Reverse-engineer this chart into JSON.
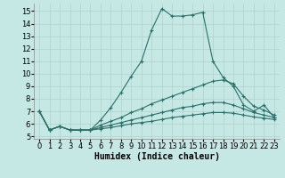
{
  "xlabel": "Humidex (Indice chaleur)",
  "bg_color": "#c5e8e5",
  "line_color": "#2a7068",
  "grid_color": "#b0d0cc",
  "xlim": [
    -0.5,
    23.5
  ],
  "ylim": [
    4.8,
    15.6
  ],
  "xticks": [
    0,
    1,
    2,
    3,
    4,
    5,
    6,
    7,
    8,
    9,
    10,
    11,
    12,
    13,
    14,
    15,
    16,
    17,
    18,
    19,
    20,
    21,
    22,
    23
  ],
  "yticks": [
    5,
    6,
    7,
    8,
    9,
    10,
    11,
    12,
    13,
    14,
    15
  ],
  "line1_x": [
    0,
    1,
    2,
    3,
    4,
    5,
    6,
    7,
    8,
    9,
    10,
    11,
    12,
    13,
    14,
    15,
    16,
    17,
    18,
    19,
    20,
    21,
    22,
    23
  ],
  "line1_y": [
    7.0,
    5.5,
    5.8,
    5.5,
    5.5,
    5.5,
    6.3,
    7.3,
    8.5,
    9.8,
    11.0,
    13.5,
    15.2,
    14.6,
    14.6,
    14.7,
    14.9,
    11.0,
    9.7,
    9.0,
    7.5,
    7.0,
    7.5,
    6.5
  ],
  "line2_x": [
    0,
    1,
    2,
    3,
    4,
    5,
    6,
    7,
    8,
    9,
    10,
    11,
    12,
    13,
    14,
    15,
    16,
    17,
    18,
    19,
    20,
    21,
    22,
    23
  ],
  "line2_y": [
    7.0,
    5.5,
    5.8,
    5.5,
    5.5,
    5.5,
    5.9,
    6.2,
    6.5,
    6.9,
    7.2,
    7.6,
    7.9,
    8.2,
    8.5,
    8.8,
    9.1,
    9.4,
    9.5,
    9.2,
    8.2,
    7.4,
    7.1,
    6.7
  ],
  "line3_x": [
    0,
    1,
    2,
    3,
    4,
    5,
    6,
    7,
    8,
    9,
    10,
    11,
    12,
    13,
    14,
    15,
    16,
    17,
    18,
    19,
    20,
    21,
    22,
    23
  ],
  "line3_y": [
    7.0,
    5.5,
    5.8,
    5.5,
    5.5,
    5.5,
    5.7,
    5.9,
    6.1,
    6.3,
    6.5,
    6.7,
    6.9,
    7.1,
    7.3,
    7.4,
    7.6,
    7.7,
    7.7,
    7.5,
    7.2,
    6.9,
    6.7,
    6.5
  ],
  "line4_x": [
    0,
    1,
    2,
    3,
    4,
    5,
    6,
    7,
    8,
    9,
    10,
    11,
    12,
    13,
    14,
    15,
    16,
    17,
    18,
    19,
    20,
    21,
    22,
    23
  ],
  "line4_y": [
    7.0,
    5.5,
    5.8,
    5.5,
    5.5,
    5.5,
    5.6,
    5.7,
    5.85,
    6.0,
    6.1,
    6.2,
    6.35,
    6.5,
    6.6,
    6.7,
    6.8,
    6.9,
    6.9,
    6.85,
    6.7,
    6.55,
    6.45,
    6.35
  ],
  "marker": "+",
  "markersize": 3.0,
  "linewidth": 0.8,
  "xlabel_fontsize": 7,
  "tick_fontsize": 6
}
